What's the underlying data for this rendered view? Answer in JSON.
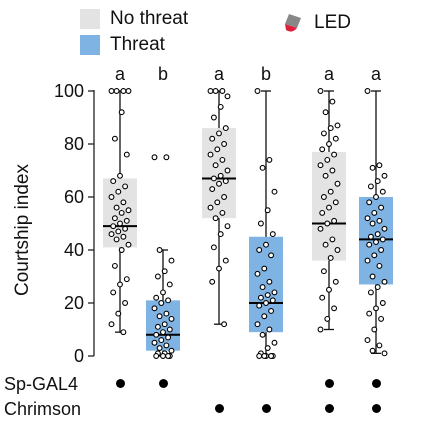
{
  "legend": {
    "no_threat": "No threat",
    "threat": "Threat",
    "led": "LED",
    "no_threat_color": "#e3e3e3",
    "threat_color": "#7fb3e3",
    "led_color": "#e0203a"
  },
  "rows": {
    "sp_gal4": "Sp-GAL4",
    "chrimson": "Chrimson",
    "sp_gal4_marks": [
      true,
      true,
      false,
      false,
      true,
      true
    ],
    "chrimson_marks": [
      false,
      false,
      true,
      true,
      true,
      true
    ]
  },
  "chart_data": {
    "type": "box",
    "ylabel": "Courtship index",
    "ylim": [
      0,
      100
    ],
    "yticks": [
      0,
      20,
      40,
      60,
      80,
      100
    ],
    "significance": [
      "a",
      "b",
      "a",
      "b",
      "a",
      "a"
    ],
    "groups": [
      {
        "condition": "No threat",
        "whisker_low": 9,
        "q1": 41,
        "median": 49,
        "q3": 67,
        "whisker_high": 100,
        "points": [
          100,
          100,
          100,
          100,
          92,
          82,
          76,
          68,
          66,
          64,
          62,
          60,
          58,
          56,
          55,
          54,
          52,
          51,
          50,
          49,
          48,
          47,
          46,
          45,
          44,
          42,
          40,
          34,
          29,
          27,
          24,
          20,
          16,
          12,
          9
        ]
      },
      {
        "condition": "Threat",
        "whisker_low": 0,
        "q1": 2,
        "median": 8,
        "q3": 21,
        "whisker_high": 40,
        "points": [
          75,
          75,
          40,
          36,
          32,
          30,
          27,
          24,
          22,
          21,
          20,
          18,
          16,
          15,
          14,
          12,
          11,
          10,
          9,
          8,
          7,
          6,
          5,
          4,
          3,
          2,
          1,
          1,
          0,
          0,
          0,
          0
        ]
      },
      {
        "condition": "No threat",
        "whisker_low": 12,
        "q1": 52,
        "median": 67,
        "q3": 86,
        "whisker_high": 100,
        "points": [
          100,
          100,
          100,
          98,
          94,
          90,
          86,
          84,
          82,
          80,
          78,
          76,
          74,
          72,
          70,
          68,
          67,
          66,
          65,
          63,
          60,
          58,
          56,
          54,
          52,
          49,
          46,
          41,
          36,
          33,
          28,
          12
        ]
      },
      {
        "condition": "Threat",
        "whisker_low": 0,
        "q1": 9,
        "median": 20,
        "q3": 45,
        "whisker_high": 100,
        "points": [
          100,
          74,
          71,
          62,
          55,
          50,
          46,
          42,
          40,
          38,
          33,
          31,
          28,
          26,
          24,
          23,
          22,
          21,
          20,
          19,
          17,
          15,
          12,
          10,
          8,
          5,
          3,
          1,
          0,
          0,
          0,
          0,
          0
        ]
      },
      {
        "condition": "No threat",
        "whisker_low": 10,
        "q1": 36,
        "median": 50,
        "q3": 77,
        "whisker_high": 100,
        "points": [
          100,
          96,
          92,
          87,
          86,
          84,
          82,
          80,
          78,
          76,
          74,
          72,
          70,
          68,
          65,
          62,
          60,
          58,
          56,
          54,
          51,
          50,
          48,
          44,
          42,
          40,
          37,
          32,
          28,
          25,
          22,
          18,
          14,
          10
        ]
      },
      {
        "condition": "Threat",
        "whisker_low": 1,
        "q1": 27,
        "median": 44,
        "q3": 60,
        "whisker_high": 100,
        "points": [
          100,
          72,
          71,
          68,
          66,
          64,
          62,
          60,
          58,
          56,
          54,
          52,
          51,
          50,
          48,
          46,
          45,
          44,
          43,
          42,
          40,
          38,
          36,
          34,
          30,
          28,
          26,
          24,
          20,
          18,
          16,
          14,
          10,
          6,
          4,
          2,
          1
        ]
      }
    ]
  }
}
